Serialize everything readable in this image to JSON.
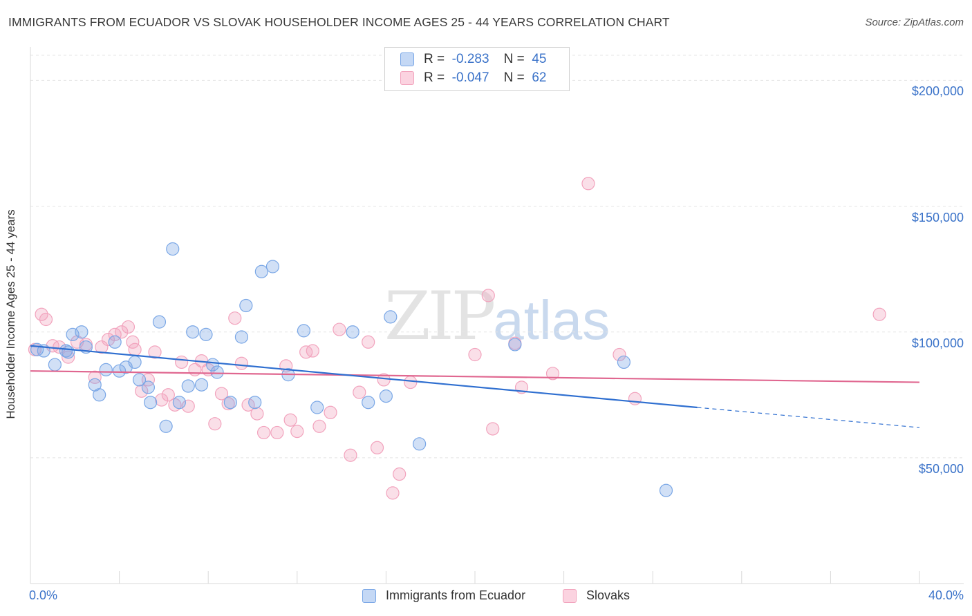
{
  "header": {
    "title": "IMMIGRANTS FROM ECUADOR VS SLOVAK HOUSEHOLDER INCOME AGES 25 - 44 YEARS CORRELATION CHART",
    "source": "Source: ZipAtlas.com"
  },
  "watermark": {
    "zip": "ZIP",
    "atlas": "atlas"
  },
  "legend": {
    "rows": [
      {
        "r_label": "R =",
        "r_value": "-0.283",
        "n_label": "N =",
        "n_value": "45"
      },
      {
        "r_label": "R =",
        "r_value": "-0.047",
        "n_label": "N =",
        "n_value": "62"
      }
    ]
  },
  "chart_data": {
    "type": "scatter",
    "title": "IMMIGRANTS FROM ECUADOR VS SLOVAK HOUSEHOLDER INCOME AGES 25 - 44 YEARS CORRELATION CHART",
    "xlabel": "",
    "ylabel": "Householder Income Ages 25 - 44 years",
    "xlim": [
      0,
      40
    ],
    "ylim": [
      0,
      210000
    ],
    "x_tick_labels": [
      "0.0%",
      "40.0%"
    ],
    "y_ticks": [
      {
        "value": 50000,
        "label": "$50,000"
      },
      {
        "value": 100000,
        "label": "$100,000"
      },
      {
        "value": 150000,
        "label": "$150,000"
      },
      {
        "value": 200000,
        "label": "$200,000"
      }
    ],
    "grid": true,
    "legend_position": "bottom",
    "colors": {
      "ecuador": "#7aa7e6",
      "ecuador_line": "#2f6fd0",
      "slovaks": "#f2a3bd",
      "slovaks_line": "#e06790",
      "tick_text": "#3b73c9"
    },
    "series": [
      {
        "name": "Immigrants from Ecuador",
        "trend": {
          "x": [
            0,
            30
          ],
          "y": [
            94500,
            70000
          ],
          "dashed_to": [
            40,
            62000
          ]
        },
        "points": [
          [
            0.3,
            93000
          ],
          [
            1.1,
            87000
          ],
          [
            1.6,
            92500
          ],
          [
            1.7,
            92000
          ],
          [
            1.9,
            99000
          ],
          [
            2.3,
            100000
          ],
          [
            2.5,
            94000
          ],
          [
            2.9,
            79000
          ],
          [
            3.1,
            75000
          ],
          [
            3.4,
            85000
          ],
          [
            3.8,
            96000
          ],
          [
            4.0,
            84500
          ],
          [
            4.3,
            86000
          ],
          [
            4.7,
            88000
          ],
          [
            4.9,
            81000
          ],
          [
            5.3,
            78000
          ],
          [
            5.4,
            72000
          ],
          [
            5.8,
            104000
          ],
          [
            6.1,
            62500
          ],
          [
            6.4,
            133000
          ],
          [
            6.7,
            72000
          ],
          [
            7.1,
            78500
          ],
          [
            7.3,
            100000
          ],
          [
            7.7,
            79000
          ],
          [
            7.9,
            99000
          ],
          [
            8.2,
            87000
          ],
          [
            8.4,
            84000
          ],
          [
            9.0,
            72000
          ],
          [
            9.5,
            98000
          ],
          [
            9.7,
            110500
          ],
          [
            10.1,
            72000
          ],
          [
            10.4,
            124000
          ],
          [
            10.9,
            126000
          ],
          [
            11.6,
            83000
          ],
          [
            12.3,
            100500
          ],
          [
            12.9,
            70000
          ],
          [
            14.5,
            100000
          ],
          [
            15.2,
            72000
          ],
          [
            16.0,
            74500
          ],
          [
            16.2,
            106000
          ],
          [
            17.5,
            55500
          ],
          [
            21.8,
            95000
          ],
          [
            26.7,
            88000
          ],
          [
            28.6,
            37000
          ],
          [
            0.6,
            92500
          ]
        ]
      },
      {
        "name": "Slovaks",
        "trend": {
          "x": [
            0,
            40
          ],
          "y": [
            84500,
            80000
          ]
        },
        "points": [
          [
            0.2,
            93000
          ],
          [
            0.5,
            107000
          ],
          [
            0.7,
            105000
          ],
          [
            1.0,
            94500
          ],
          [
            1.3,
            94000
          ],
          [
            1.7,
            90000
          ],
          [
            2.1,
            96000
          ],
          [
            2.5,
            95000
          ],
          [
            2.9,
            82000
          ],
          [
            3.2,
            94000
          ],
          [
            3.5,
            97000
          ],
          [
            3.8,
            99000
          ],
          [
            4.1,
            100000
          ],
          [
            4.4,
            102000
          ],
          [
            4.7,
            93000
          ],
          [
            5.0,
            76500
          ],
          [
            5.3,
            81000
          ],
          [
            5.6,
            92000
          ],
          [
            5.9,
            73000
          ],
          [
            6.2,
            75000
          ],
          [
            6.5,
            71000
          ],
          [
            6.8,
            88000
          ],
          [
            7.1,
            70500
          ],
          [
            7.4,
            85000
          ],
          [
            7.7,
            88500
          ],
          [
            8.0,
            85000
          ],
          [
            8.3,
            63500
          ],
          [
            8.6,
            75500
          ],
          [
            8.9,
            71500
          ],
          [
            9.2,
            105500
          ],
          [
            9.5,
            87500
          ],
          [
            9.8,
            71000
          ],
          [
            10.2,
            67500
          ],
          [
            10.5,
            60000
          ],
          [
            11.1,
            60000
          ],
          [
            11.5,
            86500
          ],
          [
            11.7,
            65000
          ],
          [
            12.0,
            60500
          ],
          [
            12.4,
            92000
          ],
          [
            12.7,
            92500
          ],
          [
            13.0,
            62500
          ],
          [
            13.5,
            68000
          ],
          [
            13.9,
            101000
          ],
          [
            14.4,
            51000
          ],
          [
            14.8,
            76000
          ],
          [
            15.2,
            96000
          ],
          [
            15.6,
            54000
          ],
          [
            15.9,
            81000
          ],
          [
            16.3,
            36000
          ],
          [
            16.6,
            43500
          ],
          [
            17.1,
            80000
          ],
          [
            20.0,
            91000
          ],
          [
            20.6,
            114500
          ],
          [
            20.8,
            61500
          ],
          [
            21.8,
            95500
          ],
          [
            22.1,
            78000
          ],
          [
            23.5,
            83500
          ],
          [
            25.1,
            159000
          ],
          [
            26.5,
            91000
          ],
          [
            27.2,
            73500
          ],
          [
            38.2,
            107000
          ],
          [
            4.6,
            96000
          ]
        ]
      }
    ]
  },
  "bottom_legend": {
    "items": [
      "Immigrants from Ecuador",
      "Slovaks"
    ]
  }
}
